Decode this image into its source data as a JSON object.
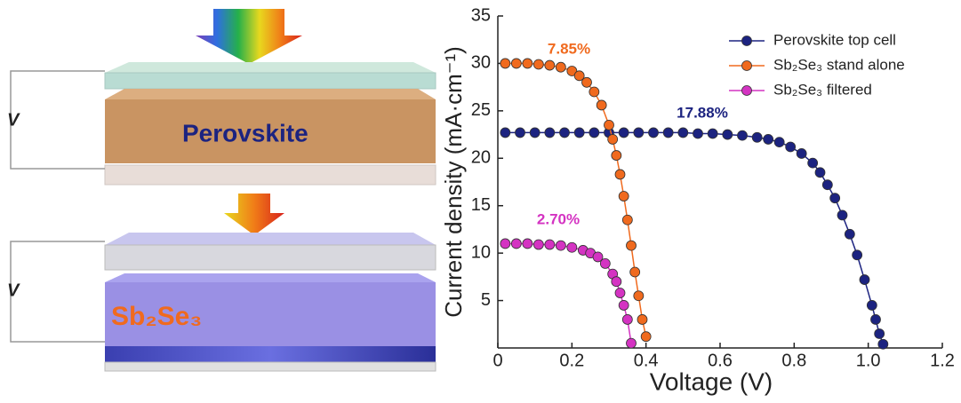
{
  "diagram": {
    "top_label": "Perovskite",
    "bottom_label": "Sb₂Se₃",
    "voltage_labels": [
      "V",
      "V"
    ]
  },
  "chart_data": {
    "type": "line",
    "x_label": "Voltage (V)",
    "y_label": "Current density (mA·cm⁻¹)",
    "xlim": [
      0,
      1.2
    ],
    "ylim": [
      0,
      35
    ],
    "xticks": [
      0,
      0.2,
      0.4,
      0.6,
      0.8,
      {
        "value": 1,
        "label": "1.0"
      },
      1.2
    ],
    "yticks": [
      5,
      10,
      15,
      20,
      25,
      30,
      35
    ],
    "legend": "upper-right",
    "series": [
      {
        "name": "Perovskite top cell",
        "color": "#1c2380",
        "annotation": "17.88%",
        "x": [
          0.02,
          0.06,
          0.1,
          0.14,
          0.18,
          0.22,
          0.26,
          0.3,
          0.34,
          0.38,
          0.42,
          0.46,
          0.5,
          0.54,
          0.58,
          0.62,
          0.66,
          0.7,
          0.73,
          0.76,
          0.79,
          0.82,
          0.85,
          0.87,
          0.89,
          0.91,
          0.93,
          0.95,
          0.97,
          0.99,
          1.01,
          1.02,
          1.03,
          1.04
        ],
        "values": [
          22.7,
          22.7,
          22.7,
          22.7,
          22.7,
          22.7,
          22.7,
          22.7,
          22.7,
          22.7,
          22.7,
          22.7,
          22.7,
          22.6,
          22.6,
          22.5,
          22.4,
          22.2,
          22.0,
          21.7,
          21.2,
          20.5,
          19.5,
          18.5,
          17.2,
          15.8,
          14.0,
          12.0,
          9.8,
          7.2,
          4.5,
          3.0,
          1.5,
          0.4
        ]
      },
      {
        "name": "Sb₂Se₃ stand alone",
        "color": "#f06a1e",
        "annotation": "7.85%",
        "x": [
          0.02,
          0.05,
          0.08,
          0.11,
          0.14,
          0.17,
          0.2,
          0.22,
          0.24,
          0.26,
          0.28,
          0.3,
          0.31,
          0.32,
          0.33,
          0.34,
          0.35,
          0.36,
          0.37,
          0.38,
          0.39,
          0.4
        ],
        "values": [
          30,
          30,
          30,
          29.9,
          29.8,
          29.6,
          29.2,
          28.7,
          28,
          27,
          25.6,
          23.5,
          22,
          20.3,
          18.3,
          16,
          13.5,
          10.8,
          8,
          5.5,
          3,
          1.2
        ]
      },
      {
        "name": "Sb₂Se₃ filtered",
        "color": "#d433c2",
        "annotation": "2.70%",
        "x": [
          0.02,
          0.05,
          0.08,
          0.11,
          0.14,
          0.17,
          0.2,
          0.23,
          0.25,
          0.27,
          0.29,
          0.31,
          0.32,
          0.33,
          0.34,
          0.35,
          0.36
        ],
        "values": [
          11,
          11,
          11,
          10.9,
          10.9,
          10.8,
          10.6,
          10.3,
          10,
          9.6,
          8.9,
          7.8,
          7,
          5.8,
          4.5,
          3,
          0.5
        ]
      }
    ]
  }
}
